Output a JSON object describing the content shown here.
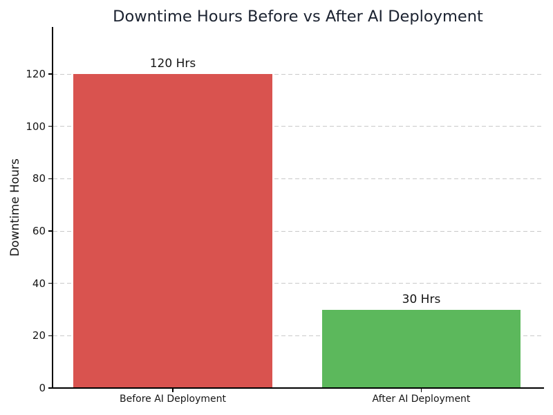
{
  "chart_data": {
    "type": "bar",
    "title": "Downtime Hours Before vs After AI Deployment",
    "ylabel": "Downtime Hours",
    "xlabel": "",
    "categories": [
      "Before AI Deployment",
      "After AI Deployment"
    ],
    "values": [
      120,
      30
    ],
    "bar_labels": [
      "120 Hrs",
      "30 Hrs"
    ],
    "bar_colors": [
      "#d9534f",
      "#5cb85c"
    ],
    "yticks": [
      0,
      20,
      40,
      60,
      80,
      100,
      120
    ],
    "ylim": [
      0,
      138
    ],
    "grid": {
      "axis": "y",
      "style": "dashed",
      "color": "#c9c9c9"
    },
    "title_color": "#1b2230",
    "text_color": "#151515"
  }
}
